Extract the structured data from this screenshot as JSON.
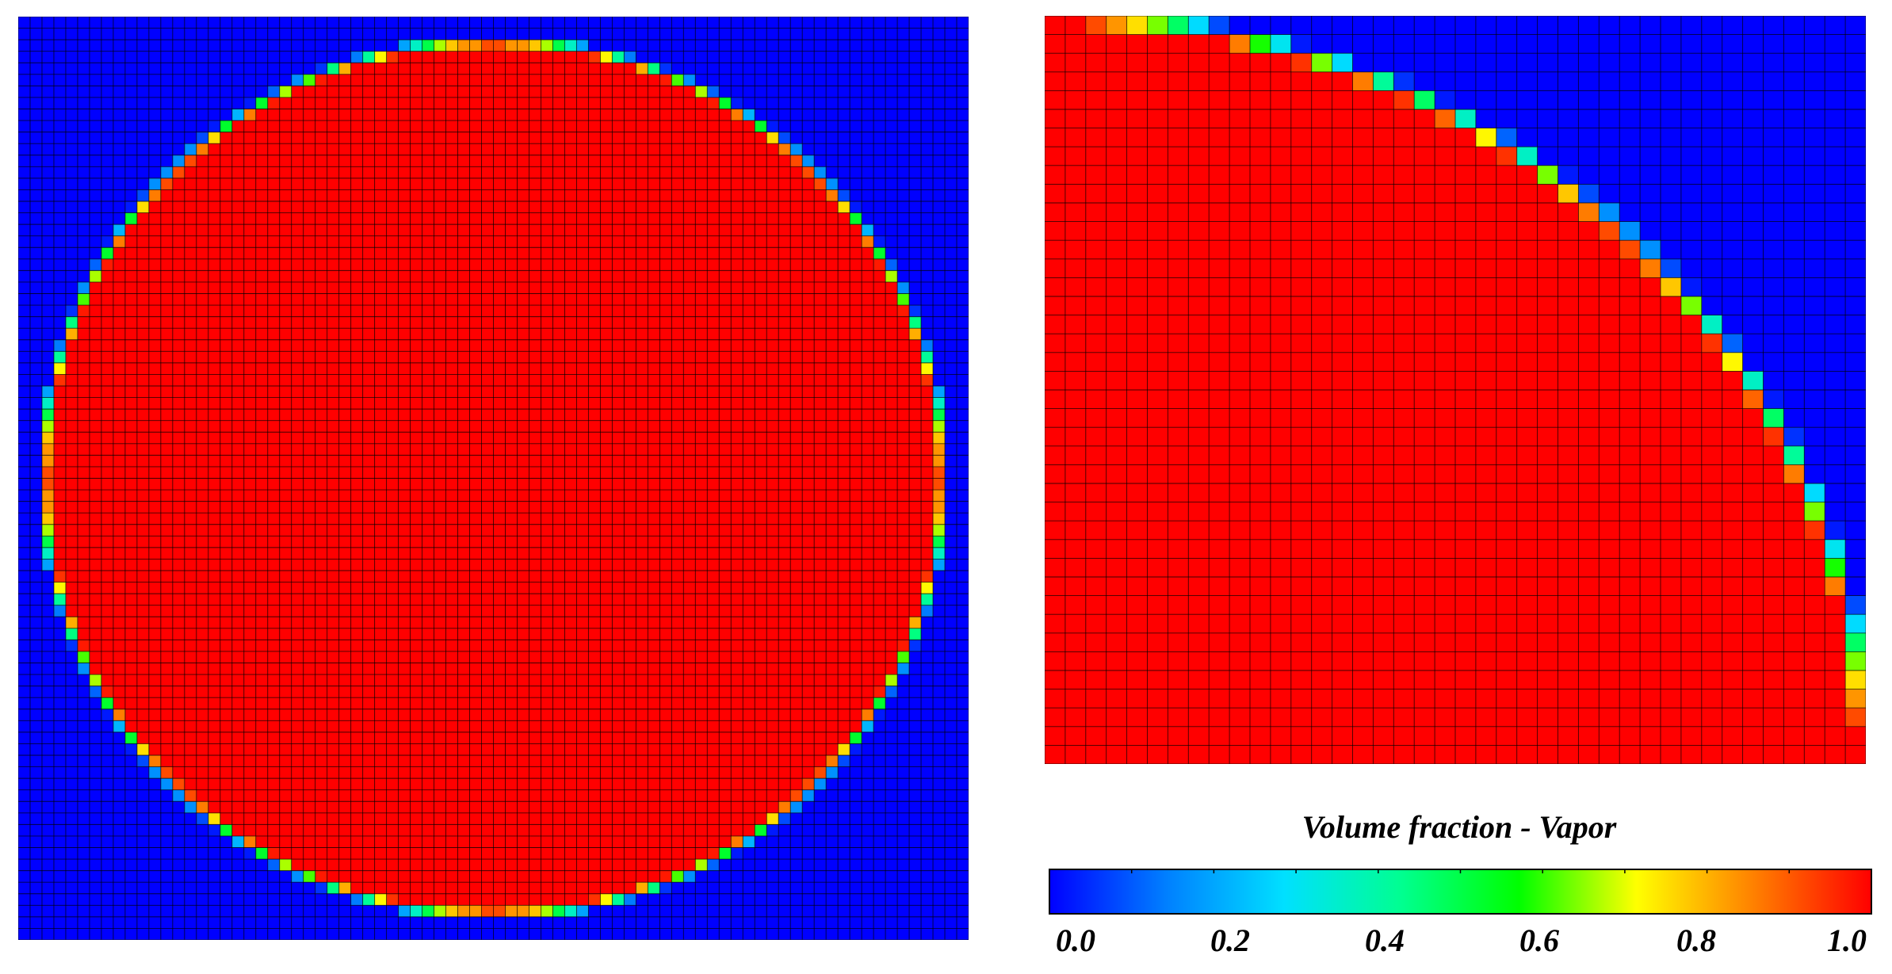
{
  "colorbar": {
    "title": "Volume fraction - Vapor",
    "ticks": [
      "0.0",
      "0.2",
      "0.4",
      "0.6",
      "0.8",
      "1.0"
    ],
    "range": [
      0.0,
      1.0
    ],
    "colormap": [
      "#0000ff",
      "#0080ff",
      "#00e0ff",
      "#00ff90",
      "#00ff00",
      "#ffff00",
      "#ff8000",
      "#ff0000"
    ]
  },
  "full_view": {
    "grid_cells": [
      80,
      80
    ],
    "interior_value": 1.0,
    "exterior_value": 0.0,
    "shape": "circle"
  },
  "zoom_view": {
    "grid_cells": [
      40,
      40
    ],
    "interior_value": 1.0,
    "exterior_value": 0.0,
    "shape": "quarter-circle"
  }
}
